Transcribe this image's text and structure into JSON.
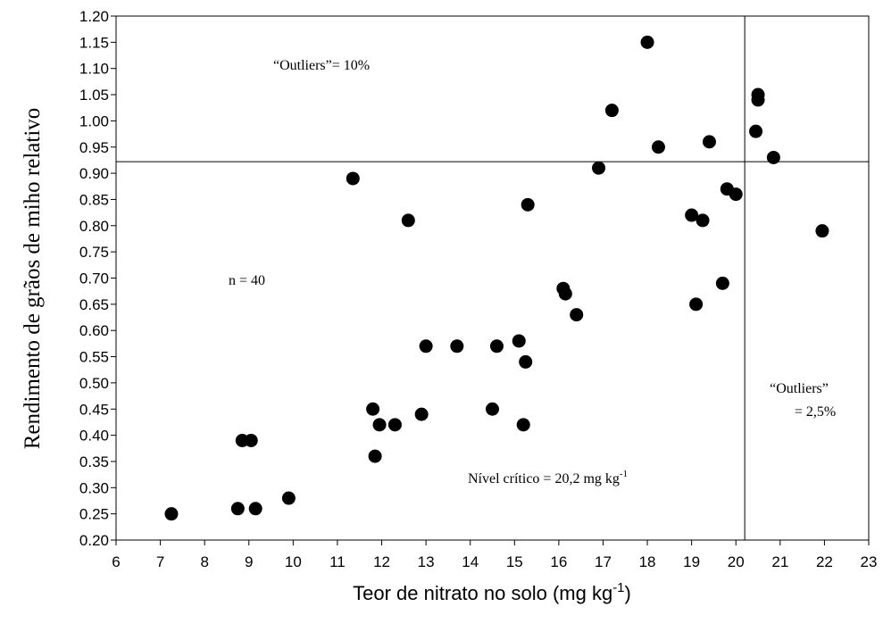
{
  "chart_data": {
    "type": "scatter",
    "xlabel": "Teor de nitrato no solo (mg kg",
    "xlabel_sup": "-1",
    "xlabel_end": ")",
    "ylabel": "Rendimento de grãos de miho relativo",
    "xlim": [
      6,
      23
    ],
    "ylim": [
      0.2,
      1.2
    ],
    "x_ticks": [
      "6",
      "7",
      "8",
      "9",
      "10",
      "11",
      "12",
      "13",
      "14",
      "15",
      "16",
      "17",
      "18",
      "19",
      "20",
      "21",
      "22",
      "23"
    ],
    "y_ticks": [
      "0.20",
      "0.25",
      "0.30",
      "0.35",
      "0.40",
      "0.45",
      "0.50",
      "0.55",
      "0.60",
      "0.65",
      "0.70",
      "0.75",
      "0.80",
      "0.85",
      "0.90",
      "0.95",
      "1.00",
      "1.05",
      "1.10",
      "1.15",
      "1.20"
    ],
    "critical_x": 20.2,
    "critical_y": 0.922,
    "grid": false,
    "marker_color": "#000000",
    "points": [
      {
        "x": 7.25,
        "y": 0.25
      },
      {
        "x": 8.75,
        "y": 0.26
      },
      {
        "x": 9.15,
        "y": 0.26
      },
      {
        "x": 8.85,
        "y": 0.39
      },
      {
        "x": 9.05,
        "y": 0.39
      },
      {
        "x": 9.9,
        "y": 0.28
      },
      {
        "x": 11.35,
        "y": 0.89
      },
      {
        "x": 11.8,
        "y": 0.45
      },
      {
        "x": 11.85,
        "y": 0.36
      },
      {
        "x": 11.95,
        "y": 0.42
      },
      {
        "x": 12.3,
        "y": 0.42
      },
      {
        "x": 12.6,
        "y": 0.81
      },
      {
        "x": 12.9,
        "y": 0.44
      },
      {
        "x": 13.0,
        "y": 0.57
      },
      {
        "x": 13.7,
        "y": 0.57
      },
      {
        "x": 14.5,
        "y": 0.45
      },
      {
        "x": 14.6,
        "y": 0.57
      },
      {
        "x": 15.1,
        "y": 0.58
      },
      {
        "x": 15.2,
        "y": 0.42
      },
      {
        "x": 15.25,
        "y": 0.54
      },
      {
        "x": 15.3,
        "y": 0.84
      },
      {
        "x": 16.1,
        "y": 0.68
      },
      {
        "x": 16.15,
        "y": 0.67
      },
      {
        "x": 16.4,
        "y": 0.63
      },
      {
        "x": 16.9,
        "y": 0.91
      },
      {
        "x": 17.2,
        "y": 1.02
      },
      {
        "x": 18.0,
        "y": 1.15
      },
      {
        "x": 18.25,
        "y": 0.95
      },
      {
        "x": 19.0,
        "y": 0.82
      },
      {
        "x": 19.1,
        "y": 0.65
      },
      {
        "x": 19.25,
        "y": 0.81
      },
      {
        "x": 19.4,
        "y": 0.96
      },
      {
        "x": 19.7,
        "y": 0.69
      },
      {
        "x": 19.8,
        "y": 0.87
      },
      {
        "x": 20.0,
        "y": 0.86
      },
      {
        "x": 20.45,
        "y": 0.98
      },
      {
        "x": 20.5,
        "y": 1.04
      },
      {
        "x": 20.5,
        "y": 1.05
      },
      {
        "x": 20.85,
        "y": 0.93
      },
      {
        "x": 21.95,
        "y": 0.79
      }
    ],
    "annotations": {
      "outliers_top": "“Outliers”= 10%",
      "n": "n = 40",
      "critical_level": "Nível crítico = 20,2 mg kg",
      "critical_level_sup": "-1",
      "outliers_right_line1": "“Outliers”",
      "outliers_right_line2": "= 2,5%"
    }
  }
}
